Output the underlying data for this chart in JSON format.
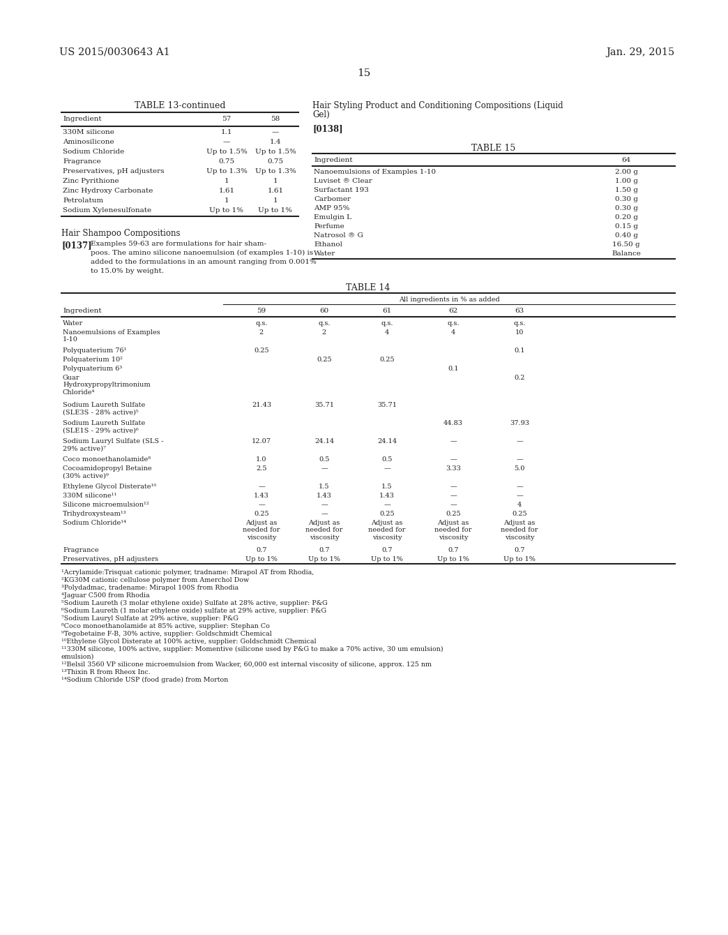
{
  "page_header_left": "US 2015/0030643 A1",
  "page_header_right": "Jan. 29, 2015",
  "page_number": "15",
  "bg_color": "#ffffff",
  "text_color": "#231f20",
  "table13_title": "TABLE 13-continued",
  "table13_headers": [
    "Ingredient",
    "57",
    "58"
  ],
  "table13_rows": [
    [
      "330M silicone",
      "1.1",
      "—"
    ],
    [
      "Aminosilicone",
      "—",
      "1.4"
    ],
    [
      "Sodium Chloride",
      "Up to 1.5%",
      "Up to 1.5%"
    ],
    [
      "Fragrance",
      "0.75",
      "0.75"
    ],
    [
      "Preservatives, pH adjusters",
      "Up to 1.3%",
      "Up to 1.3%"
    ],
    [
      "Zinc Pyrithione",
      "1",
      "1"
    ],
    [
      "Zinc Hydroxy Carbonate",
      "1.61",
      "1.61"
    ],
    [
      "Petrolatum",
      "1",
      "1"
    ],
    [
      "Sodium Xylenesulfonate",
      "Up to 1%",
      "Up to 1%"
    ]
  ],
  "section_hair_shampoo": "Hair Shampoo Compositions",
  "para_0137_label": "[0137]",
  "para_0137_text": "Examples 59-63 are formulations for hair shampoos. The amino silicone nanoemulsion (of examples 1-10) is added to the formulations in an amount ranging from 0.001% to 15.0% by weight.",
  "table14_title": "TABLE 14",
  "table14_subheader": "All ingredients in % as added",
  "table14_col_headers": [
    "Ingredient",
    "59",
    "60",
    "61",
    "62",
    "63"
  ],
  "table14_rows": [
    [
      "Water",
      "q.s.",
      "q.s.",
      "q.s.",
      "q.s.",
      "q.s."
    ],
    [
      "Nanoemulsions of Examples\n1-10",
      "2",
      "2",
      "4",
      "4",
      "10"
    ],
    [
      "Polyquaterium 76¹",
      "0.25",
      "",
      "",
      "",
      "0.1"
    ],
    [
      "Polquaterium 10²",
      "",
      "0.25",
      "0.25",
      "",
      ""
    ],
    [
      "Polyquaterium 6³",
      "",
      "",
      "",
      "0.1",
      ""
    ],
    [
      "Guar\nHydroxypropyltrimonium\nChloride⁴",
      "",
      "",
      "",
      "",
      "0.2"
    ],
    [
      "Sodium Laureth Sulfate\n(SLE3S - 28% active)⁵",
      "21.43",
      "35.71",
      "35.71",
      "",
      ""
    ],
    [
      "Sodium Laureth Sulfate\n(SLE1S - 29% active)⁶",
      "",
      "",
      "",
      "44.83",
      "37.93"
    ],
    [
      "Sodium Lauryl Sulfate (SLS -\n29% active)⁷",
      "12.07",
      "24.14",
      "24.14",
      "—",
      "—"
    ],
    [
      "Coco monoethanolamide⁸",
      "1.0",
      "0.5",
      "0.5",
      "—",
      "—"
    ],
    [
      "Cocoamidopropyl Betaine\n(30% active)⁹",
      "2.5",
      "—",
      "—",
      "3.33",
      "5.0"
    ],
    [
      "Ethylene Glycol Disterate¹⁰",
      "—",
      "1.5",
      "1.5",
      "—",
      "—"
    ],
    [
      "330M silicone¹¹",
      "1.43",
      "1.43",
      "1.43",
      "—",
      "—"
    ],
    [
      "Silicone microemulsion¹²",
      "—",
      "—",
      "—",
      "—",
      "4"
    ],
    [
      "Trihydroxysteam¹³",
      "0.25",
      "—",
      "0.25",
      "0.25",
      "0.25"
    ],
    [
      "Sodium Chloride¹⁴",
      "Adjust as\nneeded for\nviscosity",
      "Adjust as\nneeded for\nviscosity",
      "Adjust as\nneeded for\nviscosity",
      "Adjust as\nneeded for\nviscosity",
      "Adjust as\nneeded for\nviscosity"
    ],
    [
      "Fragrance",
      "0.7",
      "0.7",
      "0.7",
      "0.7",
      "0.7"
    ],
    [
      "Preservatives, pH adjusters",
      "Up to 1%",
      "Up to 1%",
      "Up to 1%",
      "Up to 1%",
      "Up to 1%"
    ]
  ],
  "footnotes": [
    "¹Acrylamide:Trisquat cationic polymer, tradname: Mirapol AT from Rhodia,",
    "²KG30M cationic cellulose polymer from Amerchol Dow",
    "³Polydadmac, tradename: Mirapol 100S from Rhodia",
    "⁴Jaguar C500 from Rhodia",
    "⁵Sodium Laureth (3 molar ethylene oxide) Sulfate at 28% active, supplier: P&G",
    "⁶Sodium Laureth (1 molar ethylene oxide) sulfate at 29% active, supplier: P&G",
    "⁷Sodium Lauryl Sulfate at 29% active, supplier: P&G",
    "⁸Coco monoethanolamide at 85% active, supplier: Stephan Co",
    "⁹Tegobetaine F-B, 30% active, supplier: Goldschmidt Chemical",
    "¹⁰Ethylene Glycol Disterate at 100% active, supplier: Goldschmidt Chemical",
    "¹¹330M silicone, 100% active, supplier: Momentive (silicone used by P&G to make a 70% active, 30 um emulsion)",
    "¹²Belsil 3560 VP silicone microemulsion from Wacker, 60,000 est internal viscosity of silicone, approx. 125 nm",
    "¹³Thixin R from Rheox Inc.",
    "¹⁴Sodium Chloride USP (food grade) from Morton"
  ],
  "section_hair_styling_line1": "Hair Styling Product and Conditioning Compositions (Liquid",
  "section_hair_styling_line2": "Gel)",
  "para_0138_label": "[0138]",
  "table15_title": "TABLE 15",
  "table15_headers": [
    "Ingredient",
    "64"
  ],
  "table15_rows": [
    [
      "Nanoemulsions of Examples 1-10",
      "2.00 g"
    ],
    [
      "Luviset ® Clear",
      "1.00 g"
    ],
    [
      "Surfactant 193",
      "1.50 g"
    ],
    [
      "Carbomer",
      "0.30 g"
    ],
    [
      "AMP 95%",
      "0.30 g"
    ],
    [
      "Emulgin L",
      "0.20 g"
    ],
    [
      "Perfume",
      "0.15 g"
    ],
    [
      "Natrosol ® G",
      "0.40 g"
    ],
    [
      "Ethanol",
      "16.50 g"
    ],
    [
      "Water",
      "Balance"
    ]
  ]
}
